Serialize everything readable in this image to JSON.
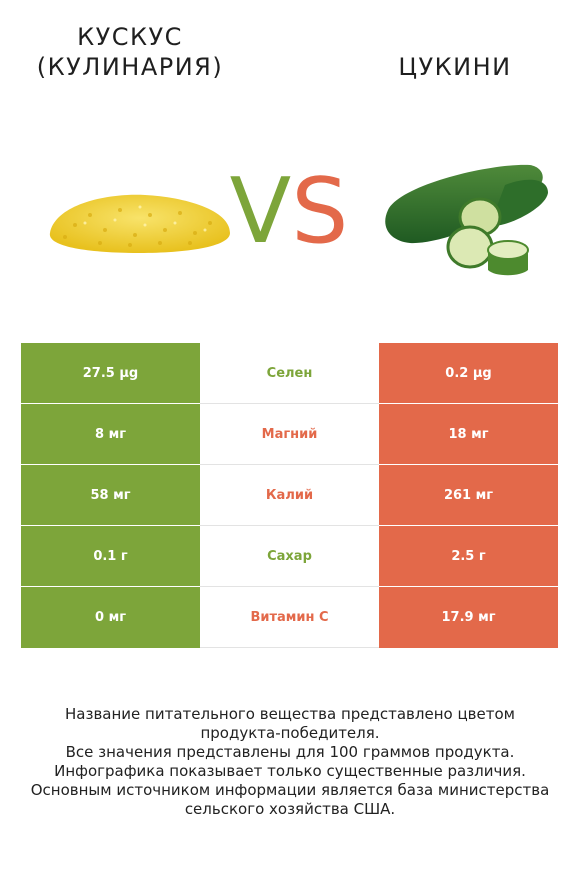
{
  "header": {
    "left_title_line1": "КУСКУС",
    "left_title_line2": "(КУЛИНАРИЯ)",
    "right_title": "ЦУКИНИ",
    "vs_v": "V",
    "vs_s": "S"
  },
  "colors": {
    "left_winner": "#7da53a",
    "right_winner": "#e3694a"
  },
  "rows": [
    {
      "left": "27.5 µg",
      "nutrient": "Селен",
      "right": "0.2 µg",
      "winner": "left"
    },
    {
      "left": "8 мг",
      "nutrient": "Магний",
      "right": "18 мг",
      "winner": "right"
    },
    {
      "left": "58 мг",
      "nutrient": "Калий",
      "right": "261 мг",
      "winner": "right"
    },
    {
      "left": "0.1 г",
      "nutrient": "Сахар",
      "right": "2.5 г",
      "winner": "left"
    },
    {
      "left": "0 мг",
      "nutrient": "Витамин C",
      "right": "17.9 мг",
      "winner": "right"
    }
  ],
  "footnote": {
    "line1": "Название питательного вещества представлено цветом",
    "line2": "продукта-победителя.",
    "line3": "Все значения представлены для 100 граммов продукта.",
    "line4": "Инфографика показывает только существенные различия.",
    "line5": "Основным источником информации является база министерства",
    "line6": "сельского хозяйства США."
  }
}
